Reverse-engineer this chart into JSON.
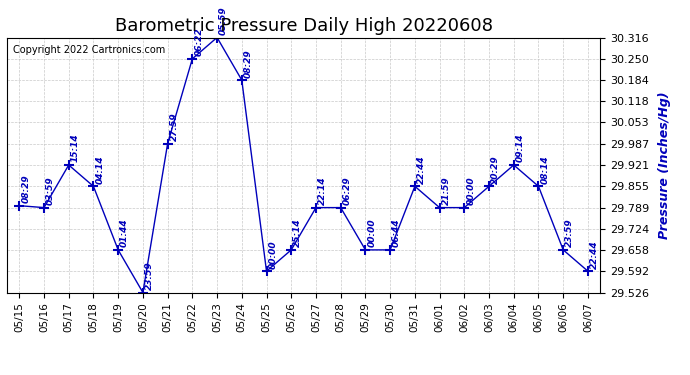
{
  "title": "Barometric Pressure Daily High 20220608",
  "ylabel": "Pressure (Inches/Hg)",
  "copyright": "Copyright 2022 Cartronics.com",
  "dates": [
    "05/15",
    "05/16",
    "05/17",
    "05/18",
    "05/19",
    "05/20",
    "05/21",
    "05/22",
    "05/23",
    "05/24",
    "05/25",
    "05/26",
    "05/27",
    "05/28",
    "05/29",
    "05/30",
    "05/31",
    "06/01",
    "06/02",
    "06/03",
    "06/04",
    "06/05",
    "06/06",
    "06/07"
  ],
  "values": [
    29.795,
    29.789,
    29.921,
    29.855,
    29.658,
    29.526,
    29.987,
    30.25,
    30.316,
    30.184,
    29.592,
    29.658,
    29.789,
    29.789,
    29.658,
    29.658,
    29.855,
    29.789,
    29.789,
    29.855,
    29.921,
    29.855,
    29.658,
    29.592
  ],
  "times": [
    "08:29",
    "03:59",
    "15:14",
    "04:14",
    "01:44",
    "23:59",
    "27:59",
    "06:22",
    "05:59",
    "08:29",
    "00:00",
    "25:14",
    "22:14",
    "06:29",
    "00:00",
    "06:44",
    "22:44",
    "21:59",
    "00:00",
    "20:29",
    "09:14",
    "08:14",
    "23:59",
    "22:44"
  ],
  "ylim_min": 29.526,
  "ylim_max": 30.316,
  "yticks": [
    29.526,
    29.592,
    29.658,
    29.724,
    29.789,
    29.855,
    29.921,
    29.987,
    30.053,
    30.118,
    30.184,
    30.25,
    30.316
  ],
  "line_color": "#0000bb",
  "marker_color": "#0000bb",
  "background_color": "#ffffff",
  "grid_color": "#bbbbbb",
  "title_color": "#000000",
  "ylabel_color": "#0000bb",
  "copyright_color": "#000000",
  "tick_label_color": "#000000",
  "annotation_color": "#0000bb",
  "title_fontsize": 13,
  "annot_fontsize": 6.5,
  "xtick_fontsize": 7.5,
  "ytick_fontsize": 8
}
